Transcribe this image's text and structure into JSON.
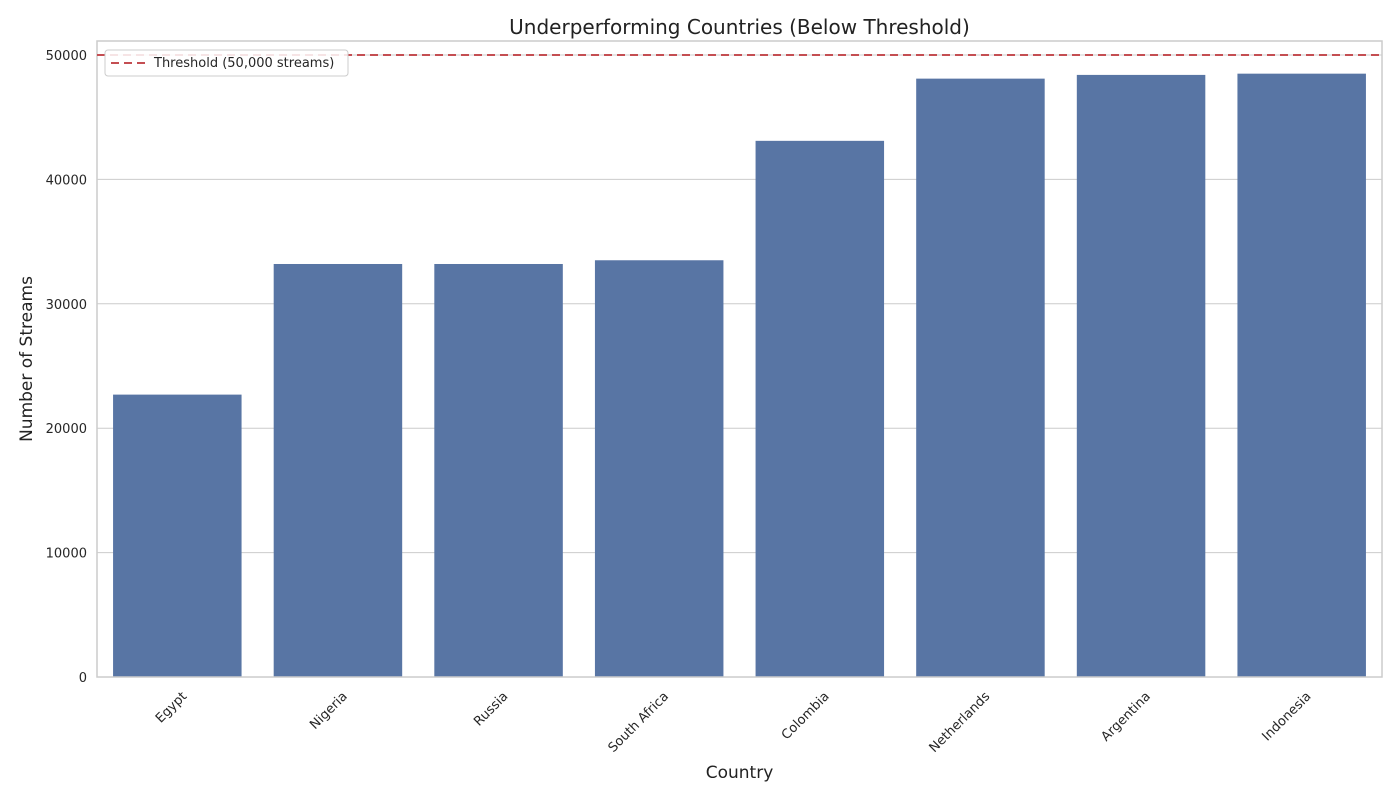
{
  "chart_data": {
    "type": "bar",
    "title": "Underperforming Countries (Below Threshold)",
    "xlabel": "Country",
    "ylabel": "Number of Streams",
    "categories": [
      "Egypt",
      "Nigeria",
      "Russia",
      "South Africa",
      "Colombia",
      "Netherlands",
      "Argentina",
      "Indonesia"
    ],
    "series": [
      {
        "values": [
          22700,
          33200,
          33200,
          33500,
          43100,
          48100,
          48400,
          48500
        ]
      }
    ],
    "ylim": [
      0,
      50000
    ],
    "yticks": [
      0,
      10000,
      20000,
      30000,
      40000,
      50000
    ],
    "ytick_labels": [
      "0",
      "10000",
      "20000",
      "30000",
      "40000",
      "50000"
    ],
    "threshold": {
      "value": 50000,
      "label": "Threshold (50,000 streams)",
      "style": "dashed"
    },
    "grid": "horizontal",
    "legend_position": "top-left",
    "colors": {
      "bar": "#5875a4",
      "threshold": "#c44e52",
      "grid": "#cccccc",
      "axes": "#cccccc"
    }
  }
}
